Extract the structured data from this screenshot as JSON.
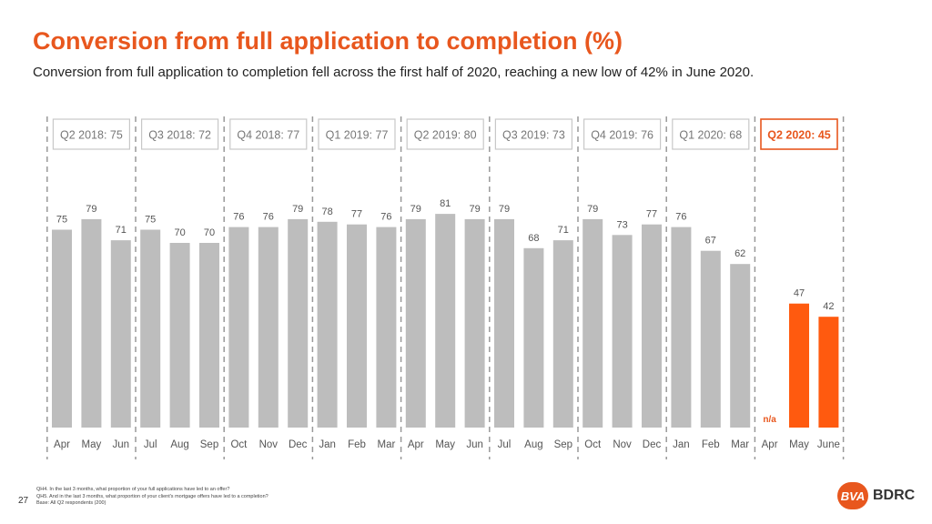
{
  "header": {
    "title": "Conversion from full application to completion (%)",
    "subtitle": "Conversion from full application to completion fell across the first half of 2020, reaching a new low of 42% in June 2020."
  },
  "footer": {
    "page_number": "27",
    "notes": [
      "QH4. In the last 3 months, what proportion of your full applications have led to an offer?",
      "QH5. And in the last 3 months, what proportion of your client's mortgage offers have led to a completion?",
      "Base: All Q2 respondents (200)"
    ],
    "logo_mark": "BVA",
    "logo_word": "BDRC"
  },
  "colors": {
    "bar": "#bdbdbd",
    "highlight": "#ff5a0f",
    "accent": "#e8571e"
  },
  "chart_data": {
    "type": "bar",
    "quarters": [
      {
        "label": "Q2 2018: 75",
        "highlight": false
      },
      {
        "label": "Q3 2018: 72",
        "highlight": false
      },
      {
        "label": "Q4 2018: 77",
        "highlight": false
      },
      {
        "label": "Q1 2019: 77",
        "highlight": false
      },
      {
        "label": "Q2 2019: 80",
        "highlight": false
      },
      {
        "label": "Q3 2019: 73",
        "highlight": false
      },
      {
        "label": "Q4 2019: 76",
        "highlight": false
      },
      {
        "label": "Q1 2020: 68",
        "highlight": false
      },
      {
        "label": "Q2 2020: 45",
        "highlight": true
      }
    ],
    "categories": [
      "Apr",
      "May",
      "Jun",
      "Jul",
      "Aug",
      "Sep",
      "Oct",
      "Nov",
      "Dec",
      "Jan",
      "Feb",
      "Mar",
      "Apr",
      "May",
      "Jun",
      "Jul",
      "Aug",
      "Sep",
      "Oct",
      "Nov",
      "Dec",
      "Jan",
      "Feb",
      "Mar",
      "Apr",
      "May",
      "June"
    ],
    "values": [
      75,
      79,
      71,
      75,
      70,
      70,
      76,
      76,
      79,
      78,
      77,
      76,
      79,
      81,
      79,
      79,
      68,
      71,
      79,
      73,
      77,
      76,
      67,
      62,
      null,
      47,
      42
    ],
    "highlight_from_index": 24,
    "missing_label": "n/a",
    "ylim": [
      0,
      100
    ],
    "grid": false
  }
}
